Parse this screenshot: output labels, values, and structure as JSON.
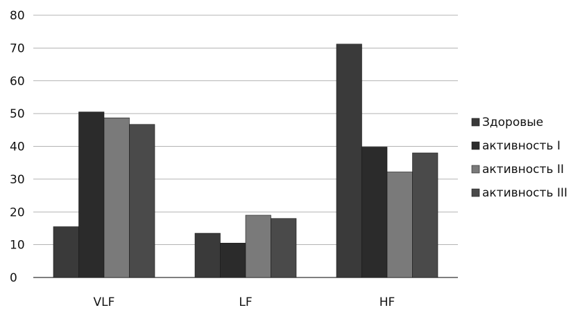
{
  "chart_data": {
    "type": "bar",
    "categories": [
      "VLF",
      "LF",
      "HF"
    ],
    "series": [
      {
        "name": "Здоровые",
        "values": [
          15.5,
          13.5,
          71.2
        ],
        "color": "#3a3a3a"
      },
      {
        "name": "активность I",
        "values": [
          50.5,
          10.5,
          39.8
        ],
        "color": "#2b2b2b"
      },
      {
        "name": "активность II",
        "values": [
          48.7,
          19.0,
          32.2
        ],
        "color": "#7a7a7a"
      },
      {
        "name": "активность III",
        "values": [
          46.7,
          18.0,
          38.0
        ],
        "color": "#4a4a4a"
      }
    ],
    "ylim": [
      0,
      80
    ],
    "yticks": [
      0,
      10,
      20,
      30,
      40,
      50,
      60,
      70,
      80
    ],
    "grid": true,
    "legend": "right"
  }
}
